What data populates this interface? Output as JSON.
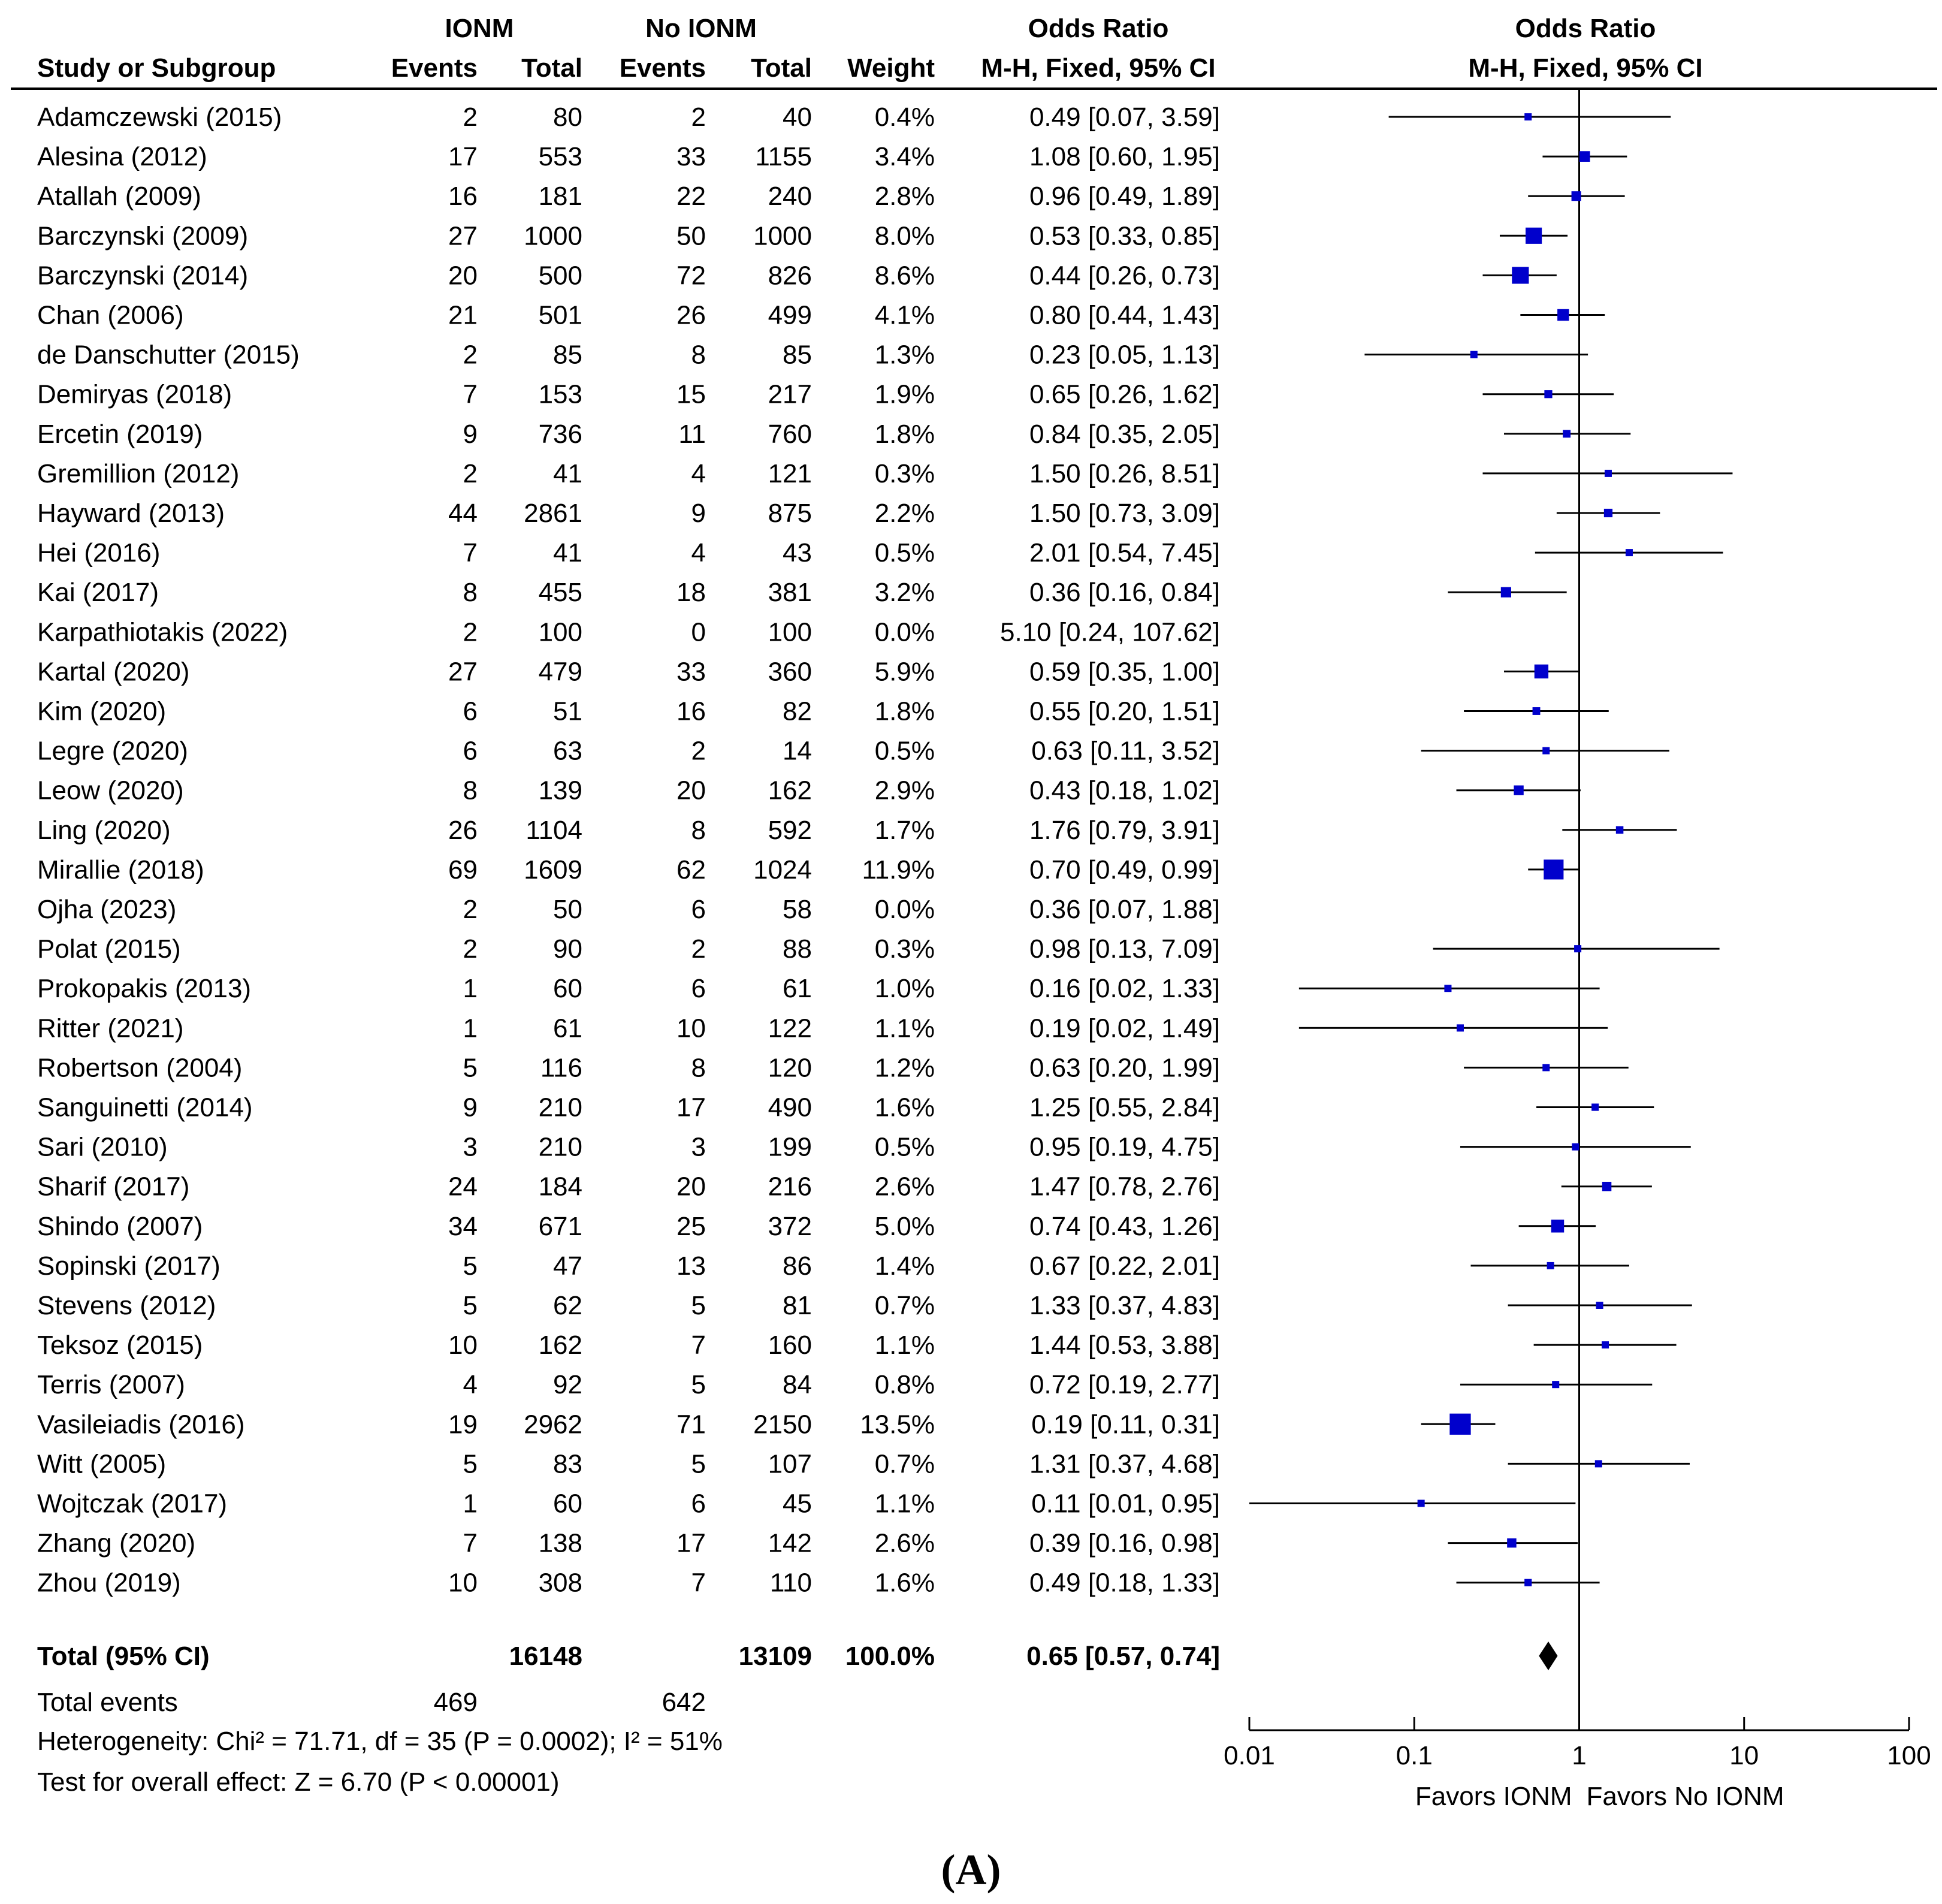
{
  "headers": {
    "study": "Study or Subgroup",
    "group1": "IONM",
    "group2": "No IONM",
    "events": "Events",
    "total": "Total",
    "weight": "Weight",
    "or_title": "Odds Ratio",
    "or_method": "M-H, Fixed, 95% CI",
    "plot_title": "Odds Ratio",
    "plot_method": "M-H, Fixed, 95% CI"
  },
  "summary": {
    "label": "Total (95% CI)",
    "total1": "16148",
    "total2": "13109",
    "weight": "100.0%",
    "ci_text": "0.65 [0.57, 0.74]",
    "events_label": "Total events",
    "events1": "469",
    "events2": "642",
    "heterogeneity": "Heterogeneity: Chi² = 71.71, df = 35 (P = 0.0002); I² = 51%",
    "overall_test": "Test for overall effect: Z = 6.70 (P < 0.00001)"
  },
  "panel_label": "(A)",
  "chart_data": {
    "type": "forest",
    "x_scale": "log",
    "xlim": [
      0.01,
      100
    ],
    "reference_line": 1,
    "x_ticks": [
      "0.01",
      "0.1",
      "1",
      "10",
      "100"
    ],
    "favors_left": "Favors IONM",
    "favors_right": "Favors No IONM",
    "marker_color": "#0000cc",
    "studies": [
      {
        "name": "Adamczewski (2015)",
        "e1": "2",
        "n1": "80",
        "e2": "2",
        "n2": "40",
        "weight": "0.4%",
        "ci_text": "0.49 [0.07, 3.59]",
        "or": 0.49,
        "lo": 0.07,
        "hi": 3.59
      },
      {
        "name": "Alesina (2012)",
        "e1": "17",
        "n1": "553",
        "e2": "33",
        "n2": "1155",
        "weight": "3.4%",
        "ci_text": "1.08 [0.60, 1.95]",
        "or": 1.08,
        "lo": 0.6,
        "hi": 1.95
      },
      {
        "name": "Atallah (2009)",
        "e1": "16",
        "n1": "181",
        "e2": "22",
        "n2": "240",
        "weight": "2.8%",
        "ci_text": "0.96 [0.49, 1.89]",
        "or": 0.96,
        "lo": 0.49,
        "hi": 1.89
      },
      {
        "name": "Barczynski (2009)",
        "e1": "27",
        "n1": "1000",
        "e2": "50",
        "n2": "1000",
        "weight": "8.0%",
        "ci_text": "0.53 [0.33, 0.85]",
        "or": 0.53,
        "lo": 0.33,
        "hi": 0.85
      },
      {
        "name": "Barczynski (2014)",
        "e1": "20",
        "n1": "500",
        "e2": "72",
        "n2": "826",
        "weight": "8.6%",
        "ci_text": "0.44 [0.26, 0.73]",
        "or": 0.44,
        "lo": 0.26,
        "hi": 0.73
      },
      {
        "name": "Chan (2006)",
        "e1": "21",
        "n1": "501",
        "e2": "26",
        "n2": "499",
        "weight": "4.1%",
        "ci_text": "0.80 [0.44, 1.43]",
        "or": 0.8,
        "lo": 0.44,
        "hi": 1.43
      },
      {
        "name": "de Danschutter (2015)",
        "e1": "2",
        "n1": "85",
        "e2": "8",
        "n2": "85",
        "weight": "1.3%",
        "ci_text": "0.23 [0.05, 1.13]",
        "or": 0.23,
        "lo": 0.05,
        "hi": 1.13
      },
      {
        "name": "Demiryas (2018)",
        "e1": "7",
        "n1": "153",
        "e2": "15",
        "n2": "217",
        "weight": "1.9%",
        "ci_text": "0.65 [0.26, 1.62]",
        "or": 0.65,
        "lo": 0.26,
        "hi": 1.62
      },
      {
        "name": "Ercetin (2019)",
        "e1": "9",
        "n1": "736",
        "e2": "11",
        "n2": "760",
        "weight": "1.8%",
        "ci_text": "0.84 [0.35, 2.05]",
        "or": 0.84,
        "lo": 0.35,
        "hi": 2.05
      },
      {
        "name": "Gremillion (2012)",
        "e1": "2",
        "n1": "41",
        "e2": "4",
        "n2": "121",
        "weight": "0.3%",
        "ci_text": "1.50 [0.26, 8.51]",
        "or": 1.5,
        "lo": 0.26,
        "hi": 8.51
      },
      {
        "name": "Hayward (2013)",
        "e1": "44",
        "n1": "2861",
        "e2": "9",
        "n2": "875",
        "weight": "2.2%",
        "ci_text": "1.50 [0.73, 3.09]",
        "or": 1.5,
        "lo": 0.73,
        "hi": 3.09
      },
      {
        "name": "Hei (2016)",
        "e1": "7",
        "n1": "41",
        "e2": "4",
        "n2": "43",
        "weight": "0.5%",
        "ci_text": "2.01 [0.54, 7.45]",
        "or": 2.01,
        "lo": 0.54,
        "hi": 7.45
      },
      {
        "name": "Kai (2017)",
        "e1": "8",
        "n1": "455",
        "e2": "18",
        "n2": "381",
        "weight": "3.2%",
        "ci_text": "0.36 [0.16, 0.84]",
        "or": 0.36,
        "lo": 0.16,
        "hi": 0.84
      },
      {
        "name": "Karpathiotakis (2022)",
        "e1": "2",
        "n1": "100",
        "e2": "0",
        "n2": "100",
        "weight": "0.0%",
        "ci_text": "5.10 [0.24, 107.62]",
        "or": null,
        "lo": null,
        "hi": null
      },
      {
        "name": "Kartal (2020)",
        "e1": "27",
        "n1": "479",
        "e2": "33",
        "n2": "360",
        "weight": "5.9%",
        "ci_text": "0.59 [0.35, 1.00]",
        "or": 0.59,
        "lo": 0.35,
        "hi": 1.0
      },
      {
        "name": "Kim (2020)",
        "e1": "6",
        "n1": "51",
        "e2": "16",
        "n2": "82",
        "weight": "1.8%",
        "ci_text": "0.55 [0.20, 1.51]",
        "or": 0.55,
        "lo": 0.2,
        "hi": 1.51
      },
      {
        "name": "Legre (2020)",
        "e1": "6",
        "n1": "63",
        "e2": "2",
        "n2": "14",
        "weight": "0.5%",
        "ci_text": "0.63 [0.11, 3.52]",
        "or": 0.63,
        "lo": 0.11,
        "hi": 3.52
      },
      {
        "name": "Leow (2020)",
        "e1": "8",
        "n1": "139",
        "e2": "20",
        "n2": "162",
        "weight": "2.9%",
        "ci_text": "0.43 [0.18, 1.02]",
        "or": 0.43,
        "lo": 0.18,
        "hi": 1.02
      },
      {
        "name": "Ling (2020)",
        "e1": "26",
        "n1": "1104",
        "e2": "8",
        "n2": "592",
        "weight": "1.7%",
        "ci_text": "1.76 [0.79, 3.91]",
        "or": 1.76,
        "lo": 0.79,
        "hi": 3.91
      },
      {
        "name": "Mirallie (2018)",
        "e1": "69",
        "n1": "1609",
        "e2": "62",
        "n2": "1024",
        "weight": "11.9%",
        "ci_text": "0.70 [0.49, 0.99]",
        "or": 0.7,
        "lo": 0.49,
        "hi": 0.99
      },
      {
        "name": "Ojha (2023)",
        "e1": "2",
        "n1": "50",
        "e2": "6",
        "n2": "58",
        "weight": "0.0%",
        "ci_text": "0.36 [0.07, 1.88]",
        "or": null,
        "lo": null,
        "hi": null
      },
      {
        "name": "Polat (2015)",
        "e1": "2",
        "n1": "90",
        "e2": "2",
        "n2": "88",
        "weight": "0.3%",
        "ci_text": "0.98 [0.13, 7.09]",
        "or": 0.98,
        "lo": 0.13,
        "hi": 7.09
      },
      {
        "name": "Prokopakis (2013)",
        "e1": "1",
        "n1": "60",
        "e2": "6",
        "n2": "61",
        "weight": "1.0%",
        "ci_text": "0.16 [0.02, 1.33]",
        "or": 0.16,
        "lo": 0.02,
        "hi": 1.33
      },
      {
        "name": "Ritter (2021)",
        "e1": "1",
        "n1": "61",
        "e2": "10",
        "n2": "122",
        "weight": "1.1%",
        "ci_text": "0.19 [0.02, 1.49]",
        "or": 0.19,
        "lo": 0.02,
        "hi": 1.49
      },
      {
        "name": "Robertson (2004)",
        "e1": "5",
        "n1": "116",
        "e2": "8",
        "n2": "120",
        "weight": "1.2%",
        "ci_text": "0.63 [0.20, 1.99]",
        "or": 0.63,
        "lo": 0.2,
        "hi": 1.99
      },
      {
        "name": "Sanguinetti (2014)",
        "e1": "9",
        "n1": "210",
        "e2": "17",
        "n2": "490",
        "weight": "1.6%",
        "ci_text": "1.25 [0.55, 2.84]",
        "or": 1.25,
        "lo": 0.55,
        "hi": 2.84
      },
      {
        "name": "Sari (2010)",
        "e1": "3",
        "n1": "210",
        "e2": "3",
        "n2": "199",
        "weight": "0.5%",
        "ci_text": "0.95 [0.19, 4.75]",
        "or": 0.95,
        "lo": 0.19,
        "hi": 4.75
      },
      {
        "name": "Sharif (2017)",
        "e1": "24",
        "n1": "184",
        "e2": "20",
        "n2": "216",
        "weight": "2.6%",
        "ci_text": "1.47 [0.78, 2.76]",
        "or": 1.47,
        "lo": 0.78,
        "hi": 2.76
      },
      {
        "name": "Shindo (2007)",
        "e1": "34",
        "n1": "671",
        "e2": "25",
        "n2": "372",
        "weight": "5.0%",
        "ci_text": "0.74 [0.43, 1.26]",
        "or": 0.74,
        "lo": 0.43,
        "hi": 1.26
      },
      {
        "name": "Sopinski (2017)",
        "e1": "5",
        "n1": "47",
        "e2": "13",
        "n2": "86",
        "weight": "1.4%",
        "ci_text": "0.67 [0.22, 2.01]",
        "or": 0.67,
        "lo": 0.22,
        "hi": 2.01
      },
      {
        "name": "Stevens (2012)",
        "e1": "5",
        "n1": "62",
        "e2": "5",
        "n2": "81",
        "weight": "0.7%",
        "ci_text": "1.33 [0.37, 4.83]",
        "or": 1.33,
        "lo": 0.37,
        "hi": 4.83
      },
      {
        "name": "Teksoz (2015)",
        "e1": "10",
        "n1": "162",
        "e2": "7",
        "n2": "160",
        "weight": "1.1%",
        "ci_text": "1.44 [0.53, 3.88]",
        "or": 1.44,
        "lo": 0.53,
        "hi": 3.88
      },
      {
        "name": "Terris (2007)",
        "e1": "4",
        "n1": "92",
        "e2": "5",
        "n2": "84",
        "weight": "0.8%",
        "ci_text": "0.72 [0.19, 2.77]",
        "or": 0.72,
        "lo": 0.19,
        "hi": 2.77
      },
      {
        "name": "Vasileiadis (2016)",
        "e1": "19",
        "n1": "2962",
        "e2": "71",
        "n2": "2150",
        "weight": "13.5%",
        "ci_text": "0.19 [0.11, 0.31]",
        "or": 0.19,
        "lo": 0.11,
        "hi": 0.31
      },
      {
        "name": "Witt (2005)",
        "e1": "5",
        "n1": "83",
        "e2": "5",
        "n2": "107",
        "weight": "0.7%",
        "ci_text": "1.31 [0.37, 4.68]",
        "or": 1.31,
        "lo": 0.37,
        "hi": 4.68
      },
      {
        "name": "Wojtczak (2017)",
        "e1": "1",
        "n1": "60",
        "e2": "6",
        "n2": "45",
        "weight": "1.1%",
        "ci_text": "0.11 [0.01, 0.95]",
        "or": 0.11,
        "lo": 0.01,
        "hi": 0.95
      },
      {
        "name": "Zhang (2020)",
        "e1": "7",
        "n1": "138",
        "e2": "17",
        "n2": "142",
        "weight": "2.6%",
        "ci_text": "0.39 [0.16, 0.98]",
        "or": 0.39,
        "lo": 0.16,
        "hi": 0.98
      },
      {
        "name": "Zhou (2019)",
        "e1": "10",
        "n1": "308",
        "e2": "7",
        "n2": "110",
        "weight": "1.6%",
        "ci_text": "0.49 [0.18, 1.33]",
        "or": 0.49,
        "lo": 0.18,
        "hi": 1.33
      }
    ],
    "pooled": {
      "or": 0.65,
      "lo": 0.57,
      "hi": 0.74
    }
  }
}
